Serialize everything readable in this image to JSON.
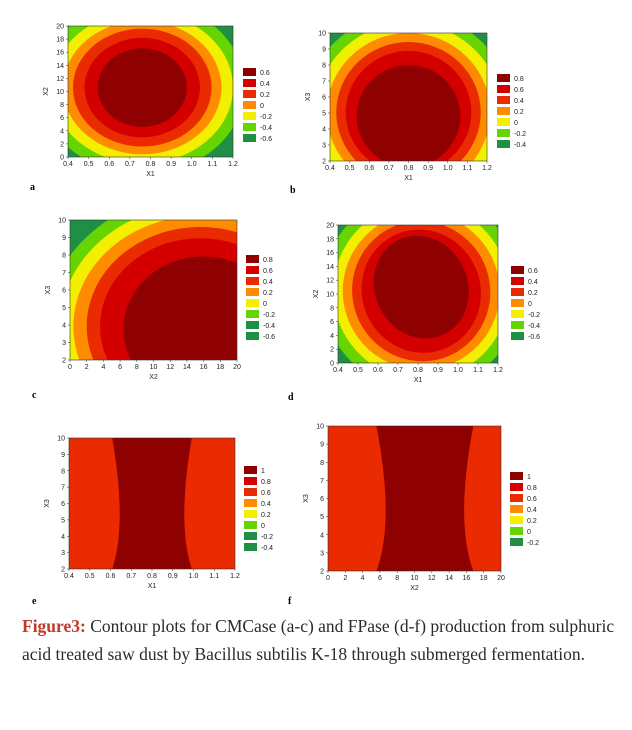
{
  "caption": {
    "label": "Figure3:",
    "text": " Contour plots for CMCase (a-c) and FPase (d-f) production from sulphuric acid treated saw dust by Bacillus subtilis K-18 through submerged fermentation."
  },
  "chart_data": [
    {
      "type": "heatmap",
      "letter": "a",
      "xlabel": "X1",
      "ylabel": "X2",
      "xlim": [
        0.4,
        1.2
      ],
      "ylim": [
        0,
        20
      ],
      "xticks": [
        "0.4",
        "0.5",
        "0.6",
        "0.7",
        "0.8",
        "0.9",
        "1.0",
        "1.1",
        "1.2"
      ],
      "yticks": [
        "0",
        "2",
        "4",
        "6",
        "8",
        "10",
        "12",
        "14",
        "16",
        "18",
        "20"
      ],
      "levels": [
        "0.6",
        "0.4",
        "0.2",
        "0",
        "-0.2",
        "-0.4",
        "-0.6"
      ],
      "peak": {
        "x": 0.76,
        "y": 11
      }
    },
    {
      "type": "heatmap",
      "letter": "b",
      "xlabel": "X1",
      "ylabel": "X3",
      "xlim": [
        0.4,
        1.2
      ],
      "ylim": [
        2,
        10
      ],
      "xticks": [
        "0.4",
        "0.5",
        "0.6",
        "0.7",
        "0.8",
        "0.9",
        "1.0",
        "1.1",
        "1.2"
      ],
      "yticks": [
        "2",
        "3",
        "4",
        "5",
        "6",
        "7",
        "8",
        "9",
        "10"
      ],
      "levels": [
        "0.8",
        "0.6",
        "0.4",
        "0.2",
        "0",
        "-0.2",
        "-0.4"
      ],
      "peak": {
        "x": 0.78,
        "y": 5
      }
    },
    {
      "type": "heatmap",
      "letter": "c",
      "xlabel": "X2",
      "ylabel": "X3",
      "xlim": [
        0,
        20
      ],
      "ylim": [
        2,
        10
      ],
      "xticks": [
        "0",
        "2",
        "4",
        "6",
        "8",
        "10",
        "12",
        "14",
        "16",
        "18",
        "20"
      ],
      "yticks": [
        "2",
        "3",
        "4",
        "5",
        "6",
        "7",
        "8",
        "9",
        "10"
      ],
      "levels": [
        "0.8",
        "0.6",
        "0.4",
        "0.2",
        "0",
        "-0.2",
        "-0.4",
        "-0.6"
      ],
      "peak": {
        "x": 15,
        "y": 4
      }
    },
    {
      "type": "heatmap",
      "letter": "d",
      "xlabel": "X1",
      "ylabel": "X2",
      "xlim": [
        0.4,
        1.2
      ],
      "ylim": [
        0,
        20
      ],
      "xticks": [
        "0.4",
        "0.5",
        "0.6",
        "0.7",
        "0.8",
        "0.9",
        "1.0",
        "1.1",
        "1.2"
      ],
      "yticks": [
        "0",
        "2",
        "4",
        "6",
        "8",
        "10",
        "12",
        "14",
        "16",
        "18",
        "20"
      ],
      "levels": [
        "0.6",
        "0.4",
        "0.2",
        "0",
        "-0.2",
        "-0.4",
        "-0.6"
      ],
      "peak": {
        "x": 0.8,
        "y": 12
      }
    },
    {
      "type": "heatmap",
      "letter": "e",
      "xlabel": "X1",
      "ylabel": "X3",
      "xlim": [
        0.4,
        1.2
      ],
      "ylim": [
        2,
        10
      ],
      "xticks": [
        "0.4",
        "0.5",
        "0.6",
        "0.7",
        "0.8",
        "0.9",
        "1.0",
        "1.1",
        "1.2"
      ],
      "yticks": [
        "2",
        "3",
        "4",
        "5",
        "6",
        "7",
        "8",
        "9",
        "10"
      ],
      "levels": [
        "1",
        "0.8",
        "0.6",
        "0.4",
        "0.2",
        "0",
        "-0.2",
        "-0.4"
      ],
      "peak": {
        "x": 0.8,
        "y": 2.5
      }
    },
    {
      "type": "heatmap",
      "letter": "f",
      "xlabel": "X2",
      "ylabel": "X3",
      "xlim": [
        0,
        20
      ],
      "ylim": [
        2,
        10
      ],
      "xticks": [
        "0",
        "2",
        "4",
        "6",
        "8",
        "10",
        "12",
        "14",
        "16",
        "18",
        "20"
      ],
      "yticks": [
        "2",
        "3",
        "4",
        "5",
        "6",
        "7",
        "8",
        "9",
        "10"
      ],
      "levels": [
        "1",
        "0.8",
        "0.6",
        "0.4",
        "0.2",
        "0",
        "-0.2"
      ],
      "peak": {
        "x": 12,
        "y": 2.5
      }
    }
  ],
  "colors": {
    "dark_red": "#8f0000",
    "red": "#d40000",
    "red2": "#ea2a00",
    "orange": "#ff8c00",
    "yellow": "#f2ef00",
    "green": "#66d400",
    "dark_green": "#1e8f45"
  }
}
